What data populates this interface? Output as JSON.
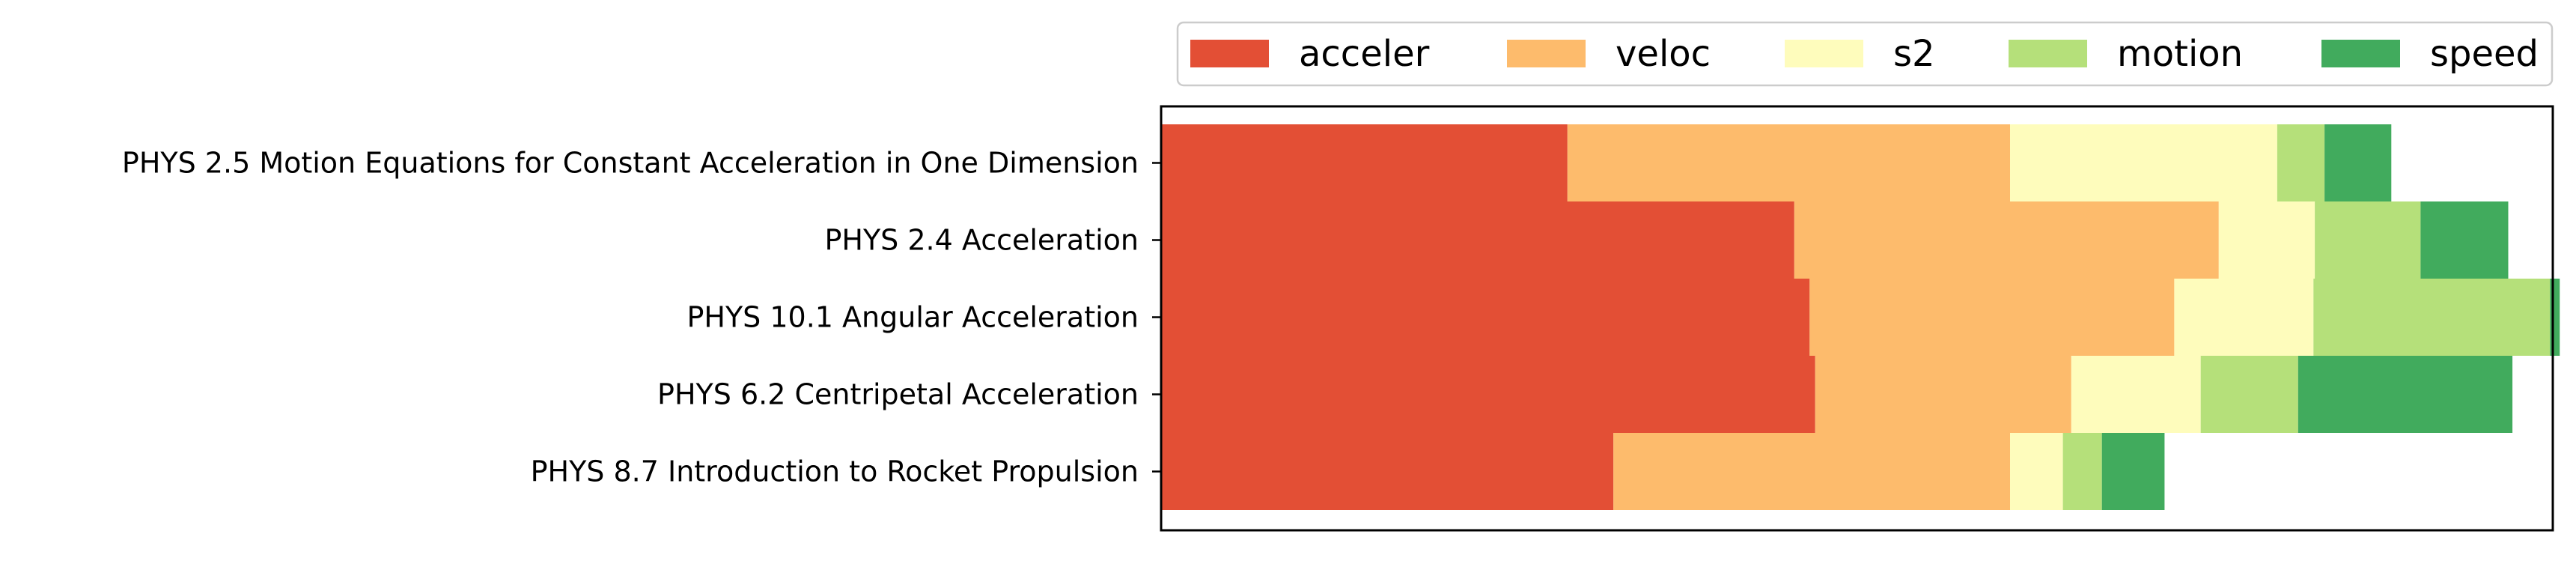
{
  "chart_data": {
    "type": "bar",
    "orientation": "horizontal",
    "stacked": true,
    "categories": [
      "PHYS 2.5 Motion Equations for Constant Acceleration in One Dimension",
      "PHYS 2.4 Acceleration",
      "PHYS 10.1 Angular Acceleration",
      "PHYS 6.2 Centripetal Acceleration",
      "PHYS 8.7 Introduction to Rocket Propulsion"
    ],
    "series": [
      {
        "name": "acceler",
        "color": "#e34f35",
        "values": [
          0.292,
          0.455,
          0.466,
          0.47,
          0.325
        ]
      },
      {
        "name": "veloc",
        "color": "#fdbb6c",
        "values": [
          0.318,
          0.305,
          0.262,
          0.184,
          0.285
        ]
      },
      {
        "name": "s2",
        "color": "#fefcbc",
        "values": [
          0.192,
          0.069,
          0.1,
          0.093,
          0.038
        ]
      },
      {
        "name": "motion",
        "color": "#b5e07a",
        "values": [
          0.034,
          0.076,
          0.17,
          0.07,
          0.028
        ]
      },
      {
        "name": "speed",
        "color": "#41ab5d",
        "values": [
          0.048,
          0.063,
          0.007,
          0.154,
          0.045
        ]
      }
    ],
    "xlim": [
      0,
      1
    ],
    "x_ticks_visible": false,
    "grid": false,
    "legend": {
      "placement": "top, above plot",
      "columns": 5
    }
  }
}
